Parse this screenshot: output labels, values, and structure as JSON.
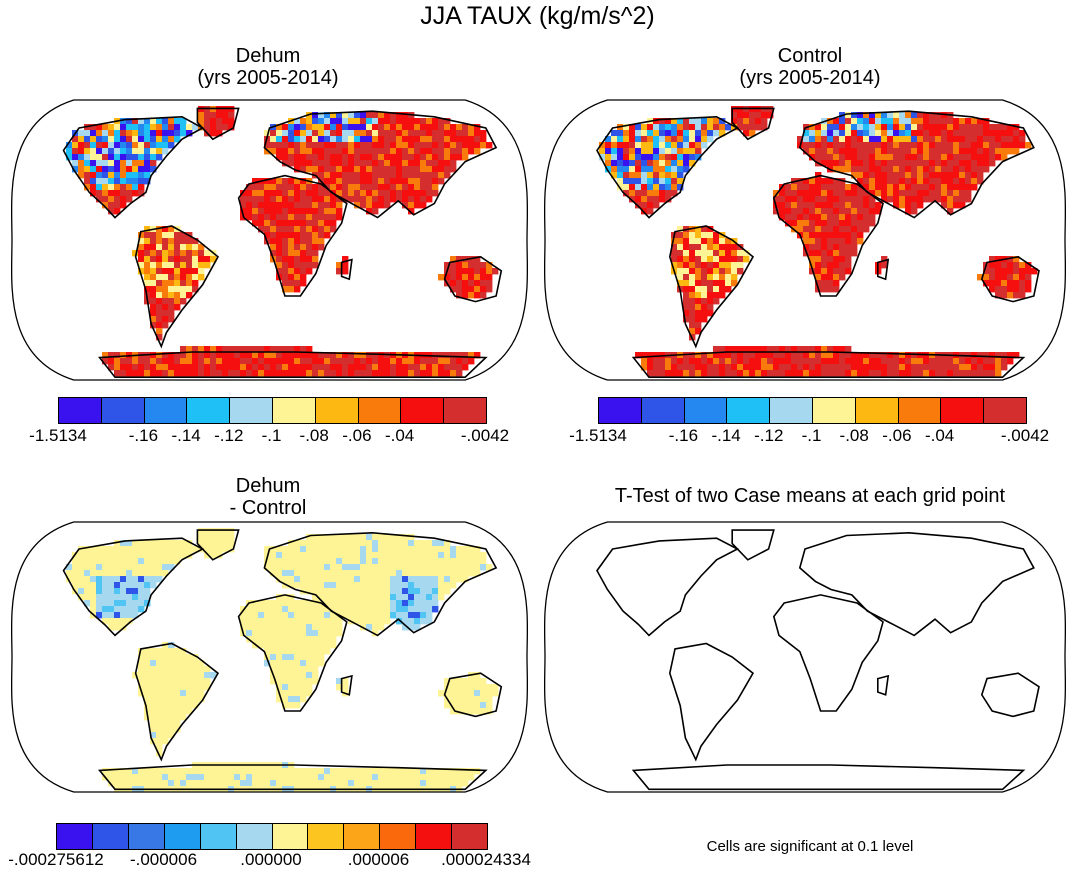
{
  "title": "JJA TAUX (kg/m/s^2)",
  "panels": [
    {
      "title_line1": "Dehum",
      "title_line2": "(yrs 2005-2014)",
      "fill": "mean",
      "colorbar": {
        "colors": [
          "#3a12f0",
          "#2e55e8",
          "#2488f0",
          "#1ec0f5",
          "#a6d8f0",
          "#fef496",
          "#fdb812",
          "#f97b0c",
          "#f50f0f",
          "#d42e2e"
        ],
        "labels": [
          "-1.5134",
          "-.16",
          "-.14",
          "-.12",
          "-.1",
          "-.08",
          "-.06",
          "-.04",
          "-.0042"
        ],
        "label_boundaries": [
          0,
          2,
          3,
          4,
          5,
          6,
          7,
          8,
          10
        ]
      }
    },
    {
      "title_line1": "Control",
      "title_line2": "(yrs 2005-2014)",
      "fill": "mean",
      "colorbar": {
        "colors": [
          "#3a12f0",
          "#2e55e8",
          "#2488f0",
          "#1ec0f5",
          "#a6d8f0",
          "#fef496",
          "#fdb812",
          "#f97b0c",
          "#f50f0f",
          "#d42e2e"
        ],
        "labels": [
          "-1.5134",
          "-.16",
          "-.14",
          "-.12",
          "-.1",
          "-.08",
          "-.06",
          "-.04",
          "-.0042"
        ],
        "label_boundaries": [
          0,
          2,
          3,
          4,
          5,
          6,
          7,
          8,
          10
        ]
      }
    },
    {
      "title_line1": "Dehum",
      "title_line2": "- Control",
      "fill": "diff",
      "colorbar": {
        "colors": [
          "#3a12f0",
          "#2e55e8",
          "#3878e6",
          "#1e9cf0",
          "#50c4f2",
          "#a6d8f0",
          "#fef496",
          "#fdc520",
          "#fda518",
          "#fa6a0c",
          "#f51010",
          "#d42e2e"
        ],
        "labels": [
          "-.000275612",
          "-.000006",
          ".000000",
          ".000006",
          ".000024334"
        ],
        "label_boundaries": [
          0,
          3,
          6,
          9,
          12
        ]
      }
    },
    {
      "title_line1": "T-Test of two Case means at each grid point",
      "title_line2": "",
      "fill": "none",
      "note": "Cells are significant at 0.1 level"
    }
  ]
}
